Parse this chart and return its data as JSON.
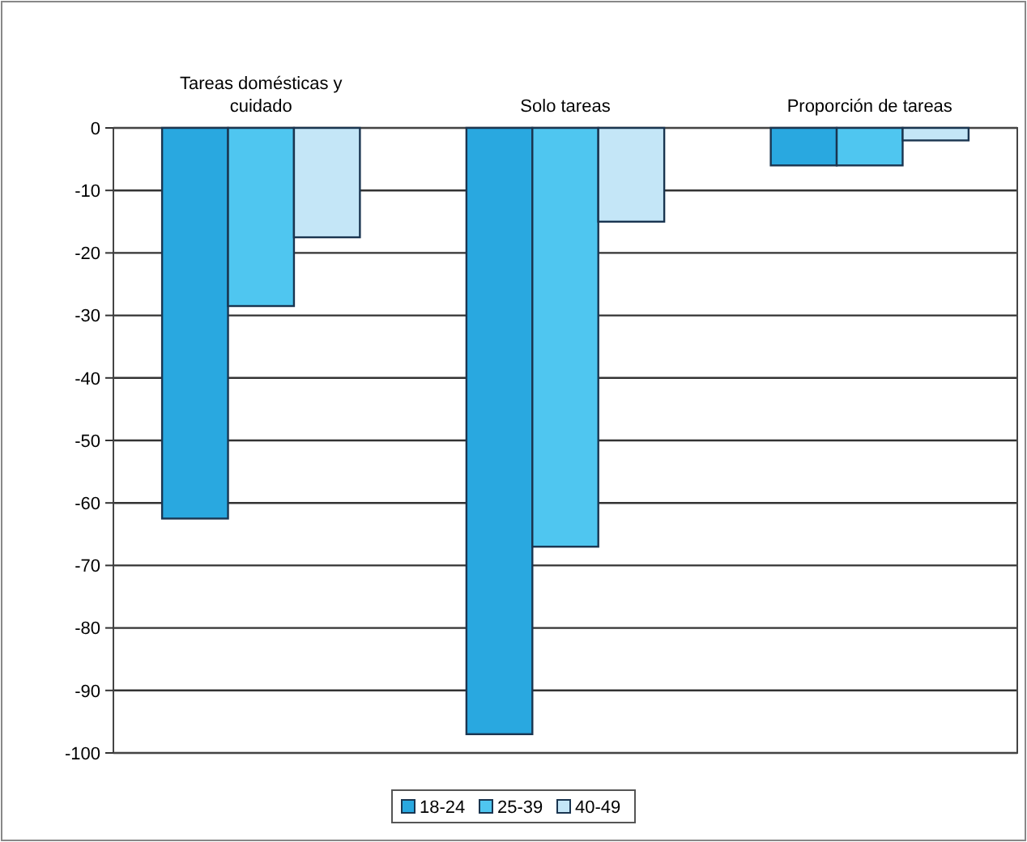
{
  "chart_data": {
    "type": "bar",
    "categories": [
      "Tareas domésticas y cuidado",
      "Solo tareas",
      "Proporción de tareas"
    ],
    "series": [
      {
        "name": "18-24",
        "color": "#29a8e0",
        "values": [
          -62.5,
          -97,
          -6
        ]
      },
      {
        "name": "25-39",
        "color": "#4fc6f0",
        "values": [
          -28.5,
          -67,
          -6
        ]
      },
      {
        "name": "40-49",
        "color": "#c4e6f7",
        "values": [
          -17.5,
          -15,
          -2
        ]
      }
    ],
    "ylim": [
      -100,
      0
    ],
    "yticks": [
      -100,
      -90,
      -80,
      -70,
      -60,
      -50,
      -40,
      -30,
      -20,
      -10,
      0
    ],
    "grid": "y",
    "legend": "bottom"
  }
}
